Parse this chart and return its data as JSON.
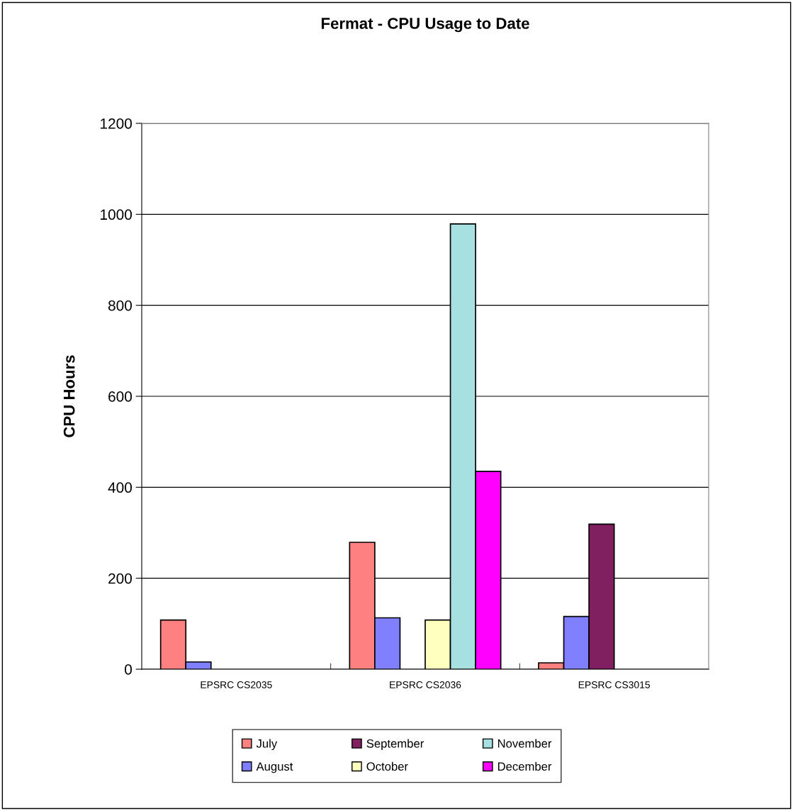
{
  "chart_data": {
    "type": "bar",
    "title": "Fermat - CPU Usage to Date",
    "ylabel": "CPU Hours",
    "categories": [
      "EPSRC CS2035",
      "EPSRC CS2036",
      "EPSRC CS3015"
    ],
    "series": [
      {
        "name": "July",
        "color": "#ff8080",
        "values": [
          108,
          279,
          14
        ]
      },
      {
        "name": "August",
        "color": "#8080ff",
        "values": [
          16,
          113,
          116
        ]
      },
      {
        "name": "September",
        "color": "#802060",
        "values": [
          null,
          null,
          319
        ]
      },
      {
        "name": "October",
        "color": "#ffffc0",
        "values": [
          null,
          108,
          null
        ]
      },
      {
        "name": "November",
        "color": "#a6e0e0",
        "values": [
          null,
          979,
          null
        ]
      },
      {
        "name": "December",
        "color": "#ff00ff",
        "values": [
          null,
          435,
          null
        ]
      }
    ],
    "ylim": [
      0,
      1200
    ],
    "yticks": [
      0,
      200,
      400,
      600,
      800,
      1000,
      1200
    ],
    "grid": "y",
    "legend": "bottom"
  }
}
